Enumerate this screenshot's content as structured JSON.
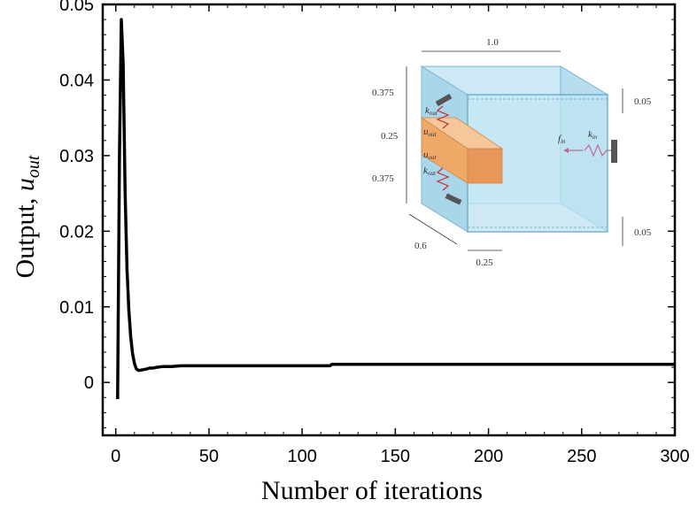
{
  "chart_data": {
    "type": "line",
    "title": "",
    "xlabel": "Number of iterations",
    "ylabel_prefix": "Output, ",
    "ylabel_symbol": "u",
    "ylabel_subscript": "out",
    "xlim": [
      -7,
      300
    ],
    "ylim": [
      -0.007,
      0.05
    ],
    "xticks": [
      0,
      50,
      100,
      150,
      200,
      250,
      300
    ],
    "xtick_labels": [
      "0",
      "50",
      "100",
      "150",
      "200",
      "250",
      "300"
    ],
    "yticks": [
      0,
      0.01,
      0.02,
      0.03,
      0.04,
      0.05
    ],
    "ytick_labels": [
      "0",
      "0.01",
      "0.02",
      "0.03",
      "0.04",
      "0.05"
    ],
    "grid": false,
    "series": [
      {
        "color": "#000000",
        "x": [
          1,
          2,
          3,
          4,
          5,
          6,
          7,
          8,
          9,
          10,
          11,
          12,
          13,
          15,
          17,
          18,
          20,
          22,
          25,
          30,
          35,
          40,
          60,
          100,
          115,
          116,
          150,
          200,
          250,
          300
        ],
        "y": [
          -0.0022,
          0.03,
          0.048,
          0.042,
          0.025,
          0.015,
          0.0095,
          0.006,
          0.0038,
          0.0025,
          0.0018,
          0.0016,
          0.0016,
          0.0017,
          0.0018,
          0.0019,
          0.0019,
          0.002,
          0.0021,
          0.0021,
          0.0022,
          0.0022,
          0.0022,
          0.0022,
          0.0022,
          0.0024,
          0.0024,
          0.0024,
          0.0024,
          0.0024
        ]
      }
    ]
  },
  "inset": {
    "dim_width": "1.0",
    "dim_upper": "0.375",
    "dim_middle": "0.25",
    "dim_lower": "0.375",
    "dim_gap_top": "0.05",
    "dim_gap_bottom": "0.05",
    "dim_depth": "0.6",
    "dim_bottom": "0.25",
    "label_k": "k",
    "label_u": "u",
    "label_f": "f",
    "sub_out": "out",
    "sub_in": "in",
    "colors": {
      "face": "#bfe3f2",
      "edge": "#7ab7d3",
      "load": "#f0a868",
      "spring_in": "#c06a9a",
      "spring_out": "#c03030"
    }
  }
}
